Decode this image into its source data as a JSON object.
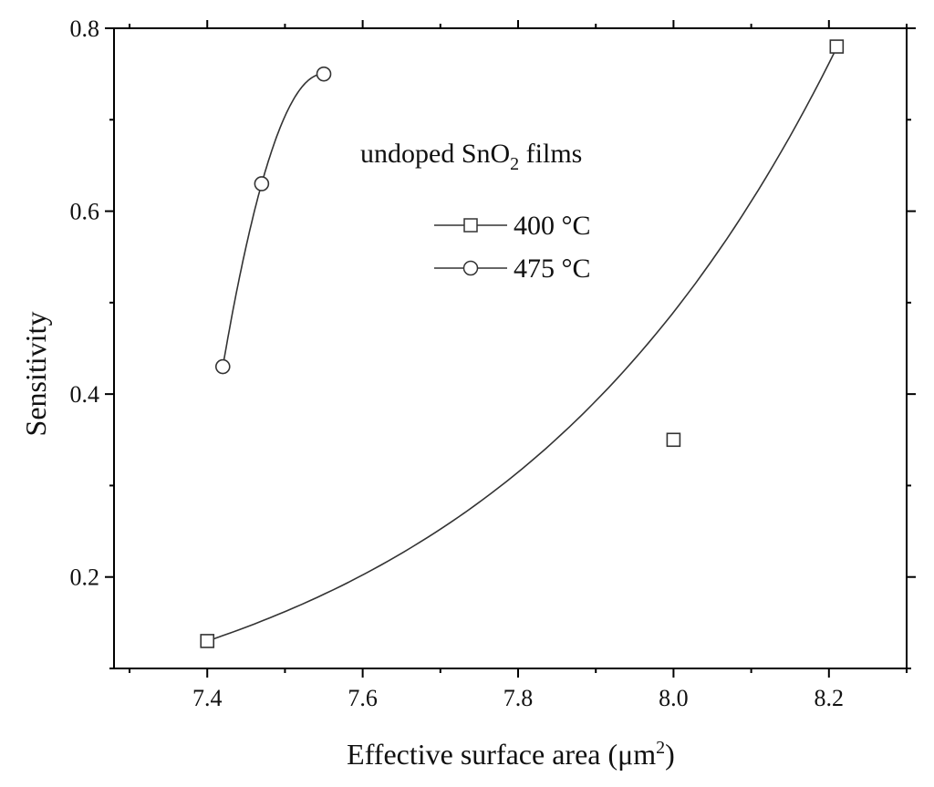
{
  "chart_data": {
    "type": "scatter",
    "title": "",
    "annotation": {
      "text": "undoped SnO",
      "sub": "2",
      "suffix": " films"
    },
    "xlabel": {
      "text": "Effective surface area (μm",
      "sup": "2",
      "suffix": ")"
    },
    "ylabel": "Sensitivity",
    "xlim": [
      7.28,
      8.3
    ],
    "ylim": [
      0.1,
      0.8
    ],
    "xticks": [
      7.4,
      7.6,
      7.8,
      8.0,
      8.2
    ],
    "xtick_labels": [
      "7.4",
      "7.6",
      "7.8",
      "8.0",
      "8.2"
    ],
    "yticks": [
      0.2,
      0.4,
      0.6,
      0.8
    ],
    "ytick_labels": [
      "0.2",
      "0.4",
      "0.6",
      "0.8"
    ],
    "grid": false,
    "legend_position": "center",
    "series": [
      {
        "name": "400 °C",
        "marker": "square",
        "x": [
          7.4,
          8.0,
          8.21
        ],
        "y": [
          0.13,
          0.35,
          0.78
        ],
        "fit": {
          "model": "exponential",
          "a": 0.13,
          "b": 2.21
        }
      },
      {
        "name": "475 °C",
        "marker": "circle",
        "x": [
          7.42,
          7.47,
          7.55
        ],
        "y": [
          0.43,
          0.63,
          0.75
        ],
        "fit": {
          "model": "quadratic_through_points"
        }
      }
    ],
    "colors": {
      "line": "#333333",
      "marker_fill": "#ffffff",
      "axis": "#000000"
    }
  }
}
